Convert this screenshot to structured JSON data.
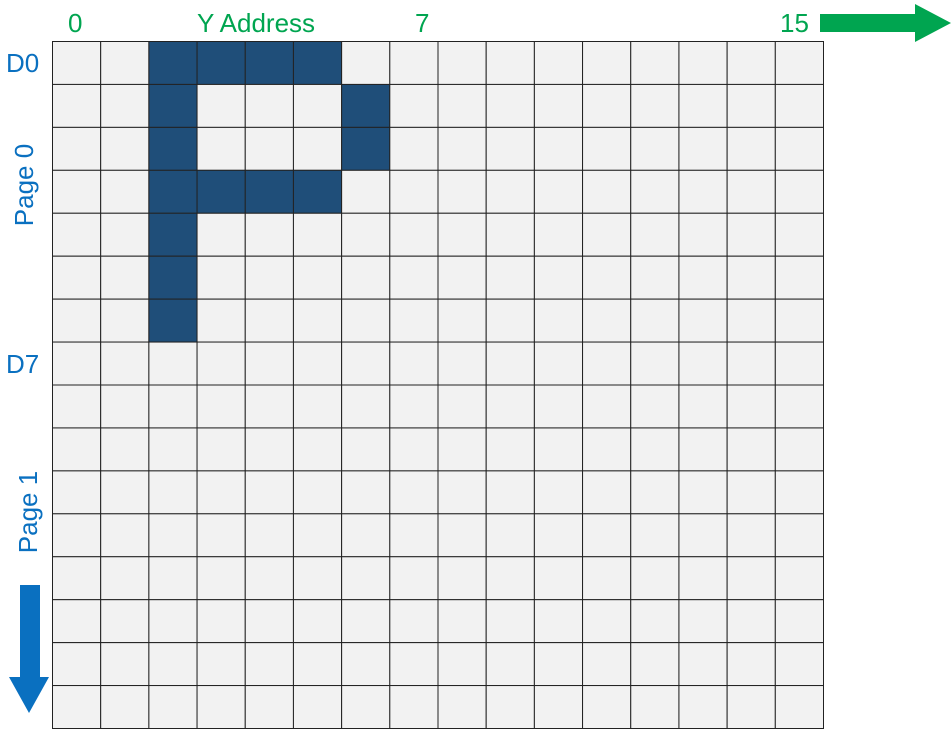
{
  "top_labels": {
    "col_start": "0",
    "axis_title": "Y Address",
    "col_mid": "7",
    "col_end": "15"
  },
  "left_labels": {
    "d0": "D0",
    "page0": "Page 0",
    "d7": "D7",
    "page1": "Page 1"
  },
  "grid": {
    "columns": 16,
    "rows": 16,
    "filled_cells": [
      [
        0,
        2
      ],
      [
        0,
        3
      ],
      [
        0,
        4
      ],
      [
        0,
        5
      ],
      [
        1,
        2
      ],
      [
        1,
        6
      ],
      [
        2,
        2
      ],
      [
        2,
        6
      ],
      [
        3,
        2
      ],
      [
        3,
        3
      ],
      [
        3,
        4
      ],
      [
        3,
        5
      ],
      [
        4,
        2
      ],
      [
        5,
        2
      ],
      [
        6,
        2
      ]
    ],
    "fill_color": "#1f4e79",
    "empty_color": "#f2f2f2"
  },
  "colors": {
    "green_accent": "#00a550",
    "blue_accent": "#0a70c0"
  }
}
